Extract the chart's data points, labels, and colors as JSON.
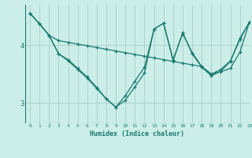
{
  "background_color": "#cceee8",
  "grid_color": "#aad4cc",
  "line_color": "#1a7a6e",
  "xlabel": "Humidex (Indice chaleur)",
  "xlim": [
    -0.5,
    23
  ],
  "ylim": [
    2.65,
    4.7
  ],
  "yticks": [
    3,
    4
  ],
  "xticks": [
    0,
    1,
    2,
    3,
    4,
    5,
    6,
    7,
    8,
    9,
    10,
    11,
    12,
    13,
    14,
    15,
    16,
    17,
    18,
    19,
    20,
    21,
    22,
    23
  ],
  "series": [
    [
      4.55,
      4.37,
      4.17,
      4.08,
      4.05,
      4.02,
      3.99,
      3.96,
      3.93,
      3.9,
      3.87,
      3.84,
      3.81,
      3.78,
      3.75,
      3.72,
      3.69,
      3.66,
      3.63,
      3.5,
      3.54,
      3.6,
      3.88,
      4.4
    ],
    [
      4.55,
      4.37,
      4.17,
      3.85,
      3.73,
      3.58,
      3.43,
      3.25,
      3.07,
      2.93,
      3.05,
      3.28,
      3.52,
      4.28,
      4.38,
      3.73,
      4.22,
      3.85,
      3.62,
      3.47,
      3.55,
      3.72,
      4.12,
      4.4
    ],
    [
      4.55,
      4.37,
      4.17,
      3.85,
      3.75,
      3.6,
      3.45,
      3.27,
      3.07,
      2.93,
      3.13,
      3.38,
      3.62,
      4.28,
      4.38,
      3.75,
      4.2,
      3.87,
      3.63,
      3.5,
      3.58,
      3.73,
      4.1,
      4.4
    ]
  ]
}
